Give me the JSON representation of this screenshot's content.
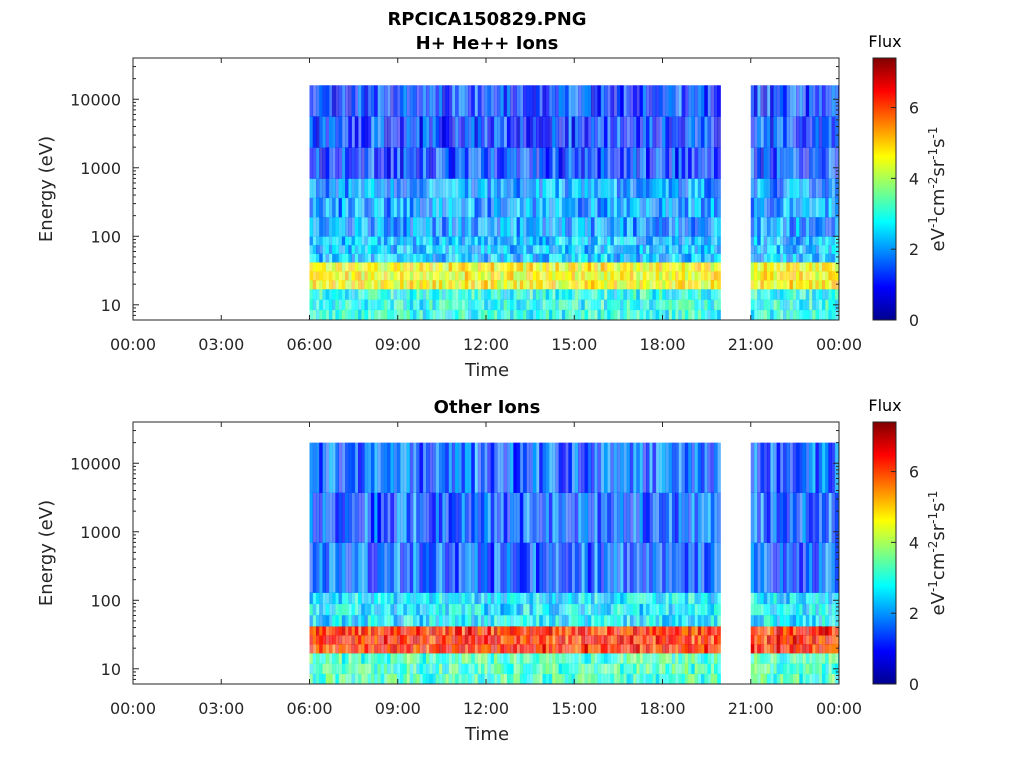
{
  "chart_data": [
    {
      "type": "heatmap",
      "title_line1": "RPCICA150829.PNG",
      "title_line2": "H+ He++ Ions",
      "xlabel": "Time",
      "ylabel": "Energy (eV)",
      "x_ticks": [
        "00:00",
        "03:00",
        "06:00",
        "09:00",
        "12:00",
        "15:00",
        "18:00",
        "21:00",
        "00:00"
      ],
      "x_range_hours": [
        0,
        24
      ],
      "y_scale": "log",
      "y_ticks": [
        10,
        100,
        1000,
        10000
      ],
      "y_tick_labels": [
        "10",
        "100",
        "1000",
        "10000"
      ],
      "y_range": [
        6,
        40000
      ],
      "data_segments_hours": [
        [
          6.0,
          19.9
        ],
        [
          21.0,
          24.0
        ]
      ],
      "bands": [
        {
          "e_min": 6,
          "e_max": 17,
          "level": 2.9
        },
        {
          "e_min": 17,
          "e_max": 42,
          "level": 4.6
        },
        {
          "e_min": 42,
          "e_max": 100,
          "level": 2.3
        },
        {
          "e_min": 100,
          "e_max": 700,
          "level": 2.0
        },
        {
          "e_min": 700,
          "e_max": 16000,
          "level": 1.3
        }
      ],
      "colorbar": {
        "title": "Flux",
        "label": "eV-1cm-2sr-1s-1",
        "min": 0,
        "max": 7.4,
        "ticks": [
          0,
          2,
          4,
          6
        ],
        "colormap": "jet"
      }
    },
    {
      "type": "heatmap",
      "title_line1": "",
      "title_line2": "Other Ions",
      "xlabel": "Time",
      "ylabel": "Energy (eV)",
      "x_ticks": [
        "00:00",
        "03:00",
        "06:00",
        "09:00",
        "12:00",
        "15:00",
        "18:00",
        "21:00",
        "00:00"
      ],
      "x_range_hours": [
        0,
        24
      ],
      "y_scale": "log",
      "y_ticks": [
        10,
        100,
        1000,
        10000
      ],
      "y_tick_labels": [
        "10",
        "100",
        "1000",
        "10000"
      ],
      "y_range": [
        6,
        40000
      ],
      "data_segments_hours": [
        [
          6.0,
          19.9
        ],
        [
          21.0,
          24.0
        ]
      ],
      "bands": [
        {
          "e_min": 6,
          "e_max": 17,
          "level": 3.2
        },
        {
          "e_min": 17,
          "e_max": 42,
          "level": 6.2
        },
        {
          "e_min": 42,
          "e_max": 130,
          "level": 2.6
        },
        {
          "e_min": 130,
          "e_max": 20000,
          "level": 1.6
        }
      ],
      "colorbar": {
        "title": "Flux",
        "label": "eV-1cm-2sr-1s-1",
        "min": 0,
        "max": 7.4,
        "ticks": [
          0,
          2,
          4,
          6
        ],
        "colormap": "jet"
      }
    }
  ]
}
